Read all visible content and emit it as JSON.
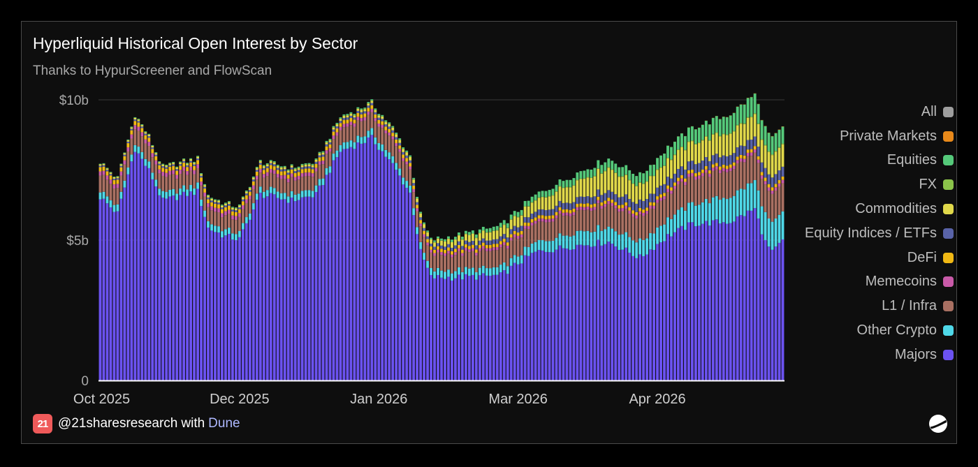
{
  "title": "Hyperliquid Historical Open Interest by Sector",
  "subtitle": "Thanks to HypurScreener and FlowScan",
  "footer": {
    "brand_logo_text": "21",
    "handle": "@21sharesresearch",
    "with_text": "with",
    "platform": "Dune"
  },
  "icons": {
    "brand": "21shares-logo-icon",
    "platform": "dune-logo-icon"
  },
  "chart_data": {
    "type": "bar",
    "stacked": true,
    "title": "Hyperliquid Historical Open Interest by Sector",
    "subtitle": "Thanks to HypurScreener and FlowScan",
    "xlabel": "",
    "ylabel": "",
    "y_tick_labels": [
      "0",
      "$5b",
      "$10b"
    ],
    "y_tick_values": [
      0,
      5,
      10
    ],
    "ylim": [
      0,
      10.1
    ],
    "x_tick_labels": [
      "Oct 2025",
      "Dec 2025",
      "Jan 2026",
      "Mar 2026",
      "Apr 2026"
    ],
    "x_tick_indices": [
      0,
      40,
      80,
      120,
      160
    ],
    "grid": "horizontal",
    "legend_position": "right",
    "legend": [
      {
        "name": "All",
        "color": "#9e9e9e"
      },
      {
        "name": "Private Markets",
        "color": "#e8891a"
      },
      {
        "name": "Equities",
        "color": "#55c97a"
      },
      {
        "name": "FX",
        "color": "#8bc34a"
      },
      {
        "name": "Commodities",
        "color": "#e0d84a"
      },
      {
        "name": "Equity Indices / ETFs",
        "color": "#5963a8"
      },
      {
        "name": "DeFi",
        "color": "#f0b814"
      },
      {
        "name": "Memecoins",
        "color": "#c95aa8"
      },
      {
        "name": "L1 / Infra",
        "color": "#a97062"
      },
      {
        "name": "Other Crypto",
        "color": "#4fd8e8"
      },
      {
        "name": "Majors",
        "color": "#6b52f0"
      }
    ],
    "series_stack_order": [
      "Majors",
      "Other Crypto",
      "L1 / Infra",
      "Memecoins",
      "DeFi",
      "Equity Indices / ETFs",
      "Commodities",
      "FX",
      "Equities",
      "Private Markets"
    ],
    "units": "USD billions",
    "keypoints_total": [
      [
        0,
        7.8
      ],
      [
        5,
        7.2
      ],
      [
        10,
        9.5
      ],
      [
        14,
        8.7
      ],
      [
        18,
        7.6
      ],
      [
        24,
        7.8
      ],
      [
        28,
        7.9
      ],
      [
        31,
        6.6
      ],
      [
        36,
        6.3
      ],
      [
        40,
        6.2
      ],
      [
        46,
        7.8
      ],
      [
        55,
        7.6
      ],
      [
        62,
        7.8
      ],
      [
        69,
        9.4
      ],
      [
        78,
        9.9
      ],
      [
        84,
        9.0
      ],
      [
        89,
        8.0
      ],
      [
        92,
        5.9
      ],
      [
        95,
        5.0
      ],
      [
        104,
        5.2
      ],
      [
        115,
        5.5
      ],
      [
        125,
        6.6
      ],
      [
        137,
        7.4
      ],
      [
        146,
        7.9
      ],
      [
        155,
        7.3
      ],
      [
        163,
        8.3
      ],
      [
        170,
        9.0
      ],
      [
        181,
        9.5
      ],
      [
        188,
        10.2
      ],
      [
        191,
        9.0
      ],
      [
        193,
        8.6
      ],
      [
        196,
        9.0
      ]
    ],
    "keypoints_majors": [
      [
        0,
        6.0
      ],
      [
        10,
        7.6
      ],
      [
        14,
        6.8
      ],
      [
        18,
        6.0
      ],
      [
        28,
        6.0
      ],
      [
        31,
        4.9
      ],
      [
        40,
        4.9
      ],
      [
        46,
        6.2
      ],
      [
        62,
        6.0
      ],
      [
        69,
        7.4
      ],
      [
        78,
        8.0
      ],
      [
        84,
        7.0
      ],
      [
        89,
        5.9
      ],
      [
        92,
        4.0
      ],
      [
        95,
        3.2
      ],
      [
        115,
        3.6
      ],
      [
        125,
        4.2
      ],
      [
        146,
        4.4
      ],
      [
        155,
        4.2
      ],
      [
        163,
        4.9
      ],
      [
        181,
        5.2
      ],
      [
        188,
        5.6
      ],
      [
        191,
        4.8
      ],
      [
        193,
        4.5
      ],
      [
        196,
        4.8
      ]
    ],
    "keypoints_other_crypto": [
      [
        0,
        0.25
      ],
      [
        40,
        0.22
      ],
      [
        89,
        0.25
      ],
      [
        95,
        0.25
      ],
      [
        120,
        0.28
      ],
      [
        137,
        0.5
      ],
      [
        163,
        0.6
      ],
      [
        181,
        0.9
      ],
      [
        188,
        1.0
      ],
      [
        196,
        1.0
      ]
    ],
    "keypoints_l1_infra": [
      [
        0,
        0.6
      ],
      [
        30,
        0.5
      ],
      [
        62,
        0.5
      ],
      [
        84,
        0.6
      ],
      [
        95,
        0.55
      ],
      [
        125,
        0.65
      ],
      [
        146,
        0.8
      ],
      [
        163,
        0.9
      ],
      [
        196,
        1.0
      ]
    ],
    "keypoints_memecoins": [
      [
        0,
        0.15
      ],
      [
        60,
        0.13
      ],
      [
        95,
        0.1
      ],
      [
        196,
        0.12
      ]
    ],
    "keypoints_defi": [
      [
        0,
        0.15
      ],
      [
        60,
        0.14
      ],
      [
        95,
        0.12
      ],
      [
        196,
        0.12
      ]
    ],
    "keypoints_equity_indices": [
      [
        0,
        0.05
      ],
      [
        80,
        0.08
      ],
      [
        95,
        0.1
      ],
      [
        125,
        0.2
      ],
      [
        155,
        0.3
      ],
      [
        196,
        0.35
      ]
    ],
    "keypoints_commodities": [
      [
        0,
        0.05
      ],
      [
        80,
        0.08
      ],
      [
        95,
        0.15
      ],
      [
        125,
        0.4
      ],
      [
        137,
        0.6
      ],
      [
        146,
        0.8
      ],
      [
        155,
        0.6
      ],
      [
        170,
        0.7
      ],
      [
        188,
        0.8
      ],
      [
        196,
        0.8
      ]
    ],
    "keypoints_fx": [
      [
        0,
        0.0
      ],
      [
        95,
        0.01
      ],
      [
        196,
        0.03
      ]
    ],
    "keypoints_equities": [
      [
        0,
        0.02
      ],
      [
        95,
        0.05
      ],
      [
        125,
        0.2
      ],
      [
        155,
        0.35
      ],
      [
        170,
        0.5
      ],
      [
        188,
        0.7
      ],
      [
        196,
        0.6
      ]
    ],
    "keypoints_private_markets": [
      [
        0,
        0.0
      ],
      [
        150,
        0.0
      ],
      [
        196,
        0.01
      ]
    ]
  }
}
